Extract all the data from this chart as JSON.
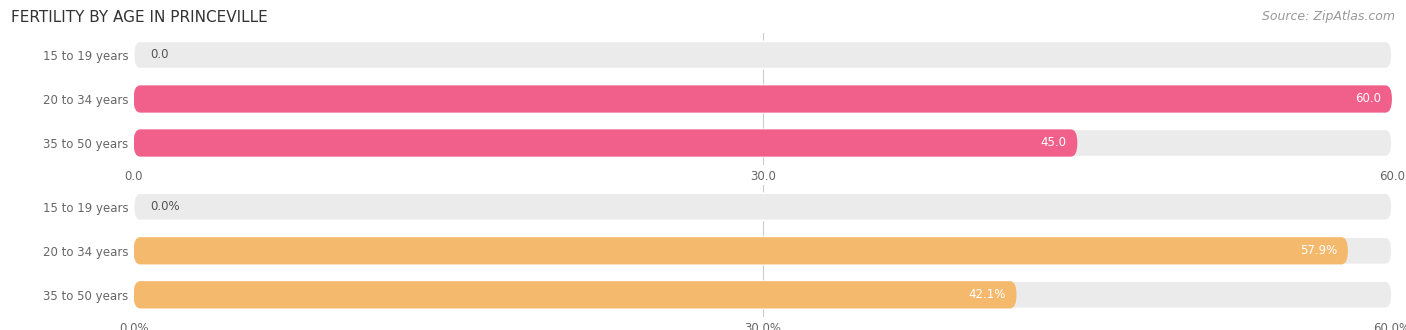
{
  "title": "FERTILITY BY AGE IN PRINCEVILLE",
  "source": "Source: ZipAtlas.com",
  "top_chart": {
    "categories": [
      "15 to 19 years",
      "20 to 34 years",
      "35 to 50 years"
    ],
    "values": [
      0.0,
      60.0,
      45.0
    ],
    "bar_color": "#f0608a",
    "background_color": "#ebebeb",
    "xlim": [
      0,
      60
    ],
    "xticks": [
      0.0,
      30.0,
      60.0
    ],
    "xtick_labels": [
      "0.0",
      "30.0",
      "60.0"
    ],
    "value_labels": [
      "0.0",
      "60.0",
      "45.0"
    ]
  },
  "bottom_chart": {
    "categories": [
      "15 to 19 years",
      "20 to 34 years",
      "35 to 50 years"
    ],
    "values": [
      0.0,
      57.9,
      42.1
    ],
    "bar_color": "#f5b96e",
    "background_color": "#ebebeb",
    "xlim": [
      0,
      60
    ],
    "xticks": [
      0.0,
      30.0,
      60.0
    ],
    "xtick_labels": [
      "0.0%",
      "30.0%",
      "60.0%"
    ],
    "value_labels": [
      "0.0%",
      "57.9%",
      "42.1%"
    ]
  },
  "title_color": "#333333",
  "title_fontsize": 11,
  "source_color": "#999999",
  "source_fontsize": 9,
  "label_color": "#666666",
  "label_fontsize": 8.5,
  "value_fontsize": 8.5,
  "bar_height": 0.62
}
